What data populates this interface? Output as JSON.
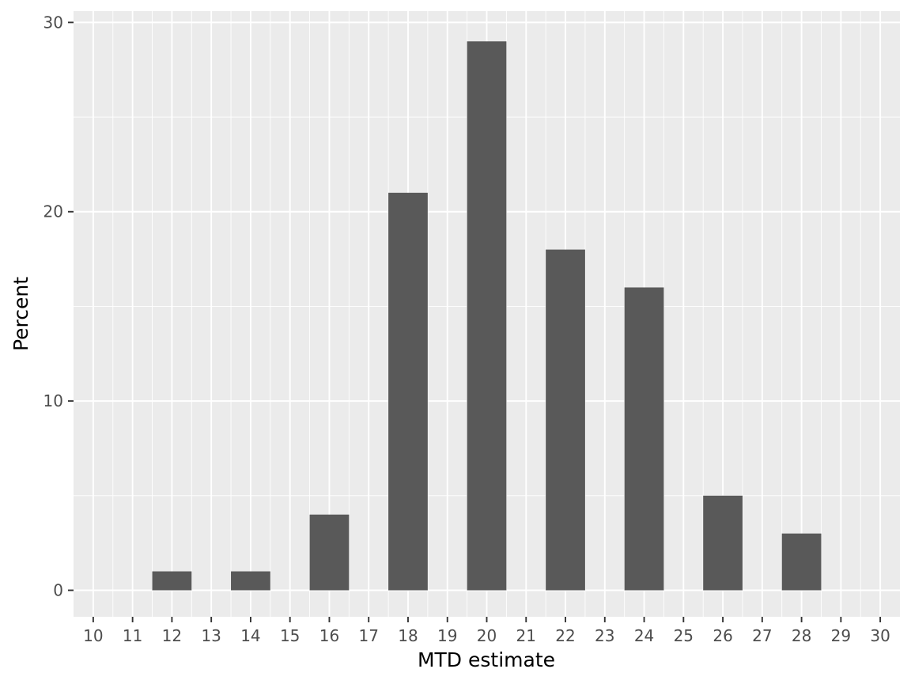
{
  "chart_data": {
    "type": "bar",
    "xlabel": "MTD estimate",
    "ylabel": "Percent",
    "x_ticks": [
      10,
      11,
      12,
      13,
      14,
      15,
      16,
      17,
      18,
      19,
      20,
      21,
      22,
      23,
      24,
      25,
      26,
      27,
      28,
      29,
      30
    ],
    "y_ticks": [
      0,
      10,
      20,
      30
    ],
    "xlim": [
      9.5,
      30.5
    ],
    "ylim": [
      -1.4,
      30.6
    ],
    "bar_width": 1,
    "categories": [
      12,
      14,
      16,
      18,
      20,
      22,
      24,
      26,
      28
    ],
    "values": [
      1,
      1,
      4,
      21,
      29,
      18,
      16,
      5,
      3
    ],
    "grid": true,
    "legend": "none",
    "colors": {
      "panel_background": "#ebebeb",
      "grid_major": "#ffffff",
      "bar_fill": "#595959",
      "tick_text": "#4d4d4d",
      "tick_mark": "#333333",
      "axis_title": "#000000"
    }
  }
}
